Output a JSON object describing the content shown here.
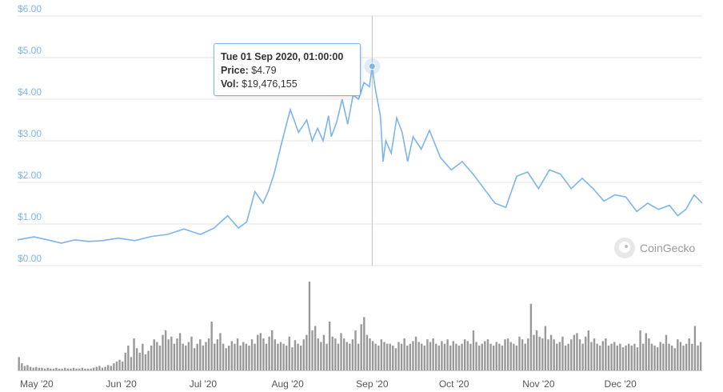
{
  "chart_data": {
    "type": "line",
    "ylim": [
      0,
      6
    ],
    "yticks": [
      "$0.00",
      "$1.00",
      "$2.00",
      "$3.00",
      "$4.00",
      "$5.00",
      "$6.00"
    ],
    "xticks": [
      "May '20",
      "Jun '20",
      "Jul '20",
      "Aug '20",
      "Sep '20",
      "Oct '20",
      "Nov '20",
      "Dec '20"
    ],
    "xrange": [
      "2020-04-24",
      "2020-12-31"
    ],
    "series": [
      {
        "x": [
          "2020-04-24",
          "2020-04-30",
          "2020-05-05",
          "2020-05-10",
          "2020-05-15",
          "2020-05-20",
          "2020-05-25",
          "2020-05-31",
          "2020-06-06",
          "2020-06-12",
          "2020-06-18",
          "2020-06-24",
          "2020-06-30",
          "2020-07-05",
          "2020-07-10",
          "2020-07-14",
          "2020-07-17",
          "2020-07-20",
          "2020-07-23",
          "2020-07-25",
          "2020-07-27",
          "2020-07-30",
          "2020-08-02",
          "2020-08-05",
          "2020-08-08",
          "2020-08-10",
          "2020-08-12",
          "2020-08-14",
          "2020-08-16",
          "2020-08-17",
          "2020-08-19",
          "2020-08-21",
          "2020-08-23",
          "2020-08-25",
          "2020-08-27",
          "2020-08-29",
          "2020-08-31",
          "2020-09-01",
          "2020-09-02",
          "2020-09-04",
          "2020-09-05",
          "2020-09-06",
          "2020-09-08",
          "2020-09-10",
          "2020-09-12",
          "2020-09-14",
          "2020-09-16",
          "2020-09-19",
          "2020-09-22",
          "2020-09-26",
          "2020-09-30",
          "2020-10-04",
          "2020-10-08",
          "2020-10-12",
          "2020-10-16",
          "2020-10-20",
          "2020-10-24",
          "2020-10-28",
          "2020-11-01",
          "2020-11-05",
          "2020-11-09",
          "2020-11-13",
          "2020-11-17",
          "2020-11-21",
          "2020-11-25",
          "2020-11-29",
          "2020-12-03",
          "2020-12-07",
          "2020-12-11",
          "2020-12-15",
          "2020-12-19",
          "2020-12-22",
          "2020-12-25",
          "2020-12-28",
          "2020-12-31"
        ],
        "values": [
          0.62,
          0.69,
          0.62,
          0.54,
          0.62,
          0.58,
          0.6,
          0.66,
          0.6,
          0.7,
          0.75,
          0.88,
          0.75,
          0.9,
          1.2,
          0.9,
          1.05,
          1.78,
          1.5,
          1.8,
          2.2,
          3.0,
          3.75,
          3.2,
          3.5,
          3.0,
          3.3,
          3.0,
          3.6,
          3.1,
          3.45,
          4.0,
          3.4,
          4.1,
          4.0,
          4.4,
          4.3,
          4.79,
          4.3,
          3.6,
          2.5,
          3.0,
          2.7,
          3.55,
          3.2,
          2.5,
          3.1,
          2.8,
          3.25,
          2.6,
          2.3,
          2.5,
          2.2,
          1.85,
          1.5,
          1.4,
          2.15,
          2.25,
          1.85,
          2.3,
          2.2,
          1.85,
          2.1,
          1.85,
          1.55,
          1.7,
          1.65,
          1.3,
          1.5,
          1.35,
          1.45,
          1.2,
          1.35,
          1.7,
          1.5
        ],
        "color": "#7cb5ec"
      }
    ],
    "volume": {
      "note": "relative daily volume bars (unlabeled axis)",
      "values": [
        0.15,
        0.08,
        0.05,
        0.06,
        0.04,
        0.03,
        0.04,
        0.03,
        0.03,
        0.02,
        0.03,
        0.02,
        0.02,
        0.03,
        0.02,
        0.02,
        0.03,
        0.02,
        0.02,
        0.03,
        0.02,
        0.02,
        0.03,
        0.02,
        0.02,
        0.02,
        0.03,
        0.04,
        0.05,
        0.03,
        0.04,
        0.06,
        0.05,
        0.08,
        0.1,
        0.12,
        0.1,
        0.2,
        0.28,
        0.15,
        0.36,
        0.25,
        0.2,
        0.3,
        0.18,
        0.22,
        0.28,
        0.35,
        0.32,
        0.28,
        0.4,
        0.45,
        0.35,
        0.38,
        0.3,
        0.36,
        0.42,
        0.3,
        0.28,
        0.32,
        0.38,
        0.25,
        0.3,
        0.35,
        0.28,
        0.32,
        0.36,
        0.55,
        0.3,
        0.35,
        0.42,
        0.3,
        0.25,
        0.28,
        0.33,
        0.3,
        0.36,
        0.28,
        0.32,
        0.3,
        0.28,
        0.35,
        0.3,
        0.4,
        0.42,
        0.36,
        0.3,
        0.38,
        0.45,
        0.35,
        0.3,
        0.32,
        0.3,
        0.28,
        0.38,
        0.26,
        0.34,
        0.3,
        0.28,
        0.35,
        0.4,
        1.0,
        0.45,
        0.5,
        0.36,
        0.32,
        0.4,
        0.3,
        0.55,
        0.38,
        0.36,
        0.3,
        0.42,
        0.36,
        0.32,
        0.3,
        0.35,
        0.45,
        0.3,
        0.52,
        0.6,
        0.4,
        0.36,
        0.33,
        0.3,
        0.28,
        0.35,
        0.32,
        0.3,
        0.3,
        0.28,
        0.25,
        0.32,
        0.3,
        0.36,
        0.28,
        0.3,
        0.33,
        0.38,
        0.32,
        0.3,
        0.28,
        0.35,
        0.32,
        0.36,
        0.3,
        0.28,
        0.33,
        0.3,
        0.35,
        0.28,
        0.33,
        0.3,
        0.28,
        0.3,
        0.35,
        0.33,
        0.3,
        0.45,
        0.32,
        0.28,
        0.3,
        0.33,
        0.35,
        0.3,
        0.28,
        0.32,
        0.3,
        0.28,
        0.35,
        0.36,
        0.32,
        0.3,
        0.28,
        0.38,
        0.35,
        0.3,
        0.36,
        0.75,
        0.4,
        0.45,
        0.38,
        0.36,
        0.5,
        0.35,
        0.4,
        0.35,
        0.3,
        0.32,
        0.38,
        0.28,
        0.3,
        0.35,
        0.4,
        0.42,
        0.35,
        0.3,
        0.38,
        0.45,
        0.32,
        0.36,
        0.3,
        0.28,
        0.33,
        0.36,
        0.28,
        0.3,
        0.32,
        0.28,
        0.3,
        0.26,
        0.28,
        0.3,
        0.28,
        0.3,
        0.26,
        0.45,
        0.3,
        0.42,
        0.36,
        0.3,
        0.28,
        0.26,
        0.32,
        0.3,
        0.4,
        0.3,
        0.28,
        0.25,
        0.35,
        0.32,
        0.28,
        0.3,
        0.36,
        0.3,
        0.5,
        0.28,
        0.32
      ]
    },
    "tooltip": {
      "date": "Tue 01 Sep 2020, 01:00:00",
      "price_label": "Price:",
      "price_value": "$4.79",
      "vol_label": "Vol:",
      "vol_value": "$19,476,155",
      "date_iso": "2020-09-01",
      "price": 4.79
    }
  },
  "brand": {
    "name": "CoinGecko",
    "icon": "gecko-logo-icon"
  },
  "colors": {
    "line": "#7cb5ec",
    "volume": "#999999",
    "grid": "#e6e6e6",
    "crosshair": "#c0c0c0"
  }
}
